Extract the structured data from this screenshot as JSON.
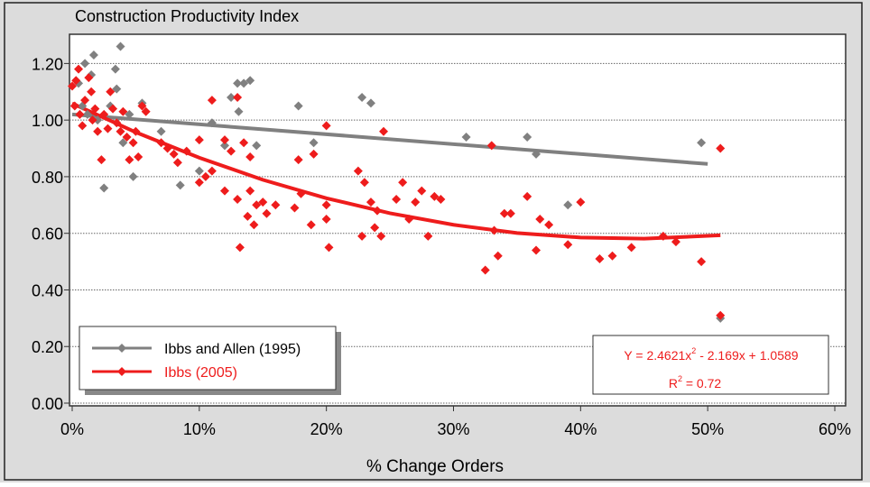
{
  "chart_data": {
    "type": "scatter",
    "title": "Construction Productivity Index",
    "x_label": "% Change Orders",
    "xlim": [
      0,
      60
    ],
    "ylim": [
      0,
      1.3
    ],
    "xticks": [
      {
        "value": 0,
        "label": "0%"
      },
      {
        "value": 10,
        "label": "10%"
      },
      {
        "value": 20,
        "label": "20%"
      },
      {
        "value": 30,
        "label": "30%"
      },
      {
        "value": 40,
        "label": "40%"
      },
      {
        "value": 50,
        "label": "50%"
      },
      {
        "value": 60,
        "label": "60%"
      }
    ],
    "yticks": [
      {
        "value": 0,
        "label": "0.00"
      },
      {
        "value": 0.2,
        "label": "0.20"
      },
      {
        "value": 0.4,
        "label": "0.40"
      },
      {
        "value": 0.6,
        "label": "0.60"
      },
      {
        "value": 0.8,
        "label": "0.80"
      },
      {
        "value": 1,
        "label": "1.00"
      },
      {
        "value": 1.2,
        "label": "1.20"
      }
    ],
    "grid": true,
    "legend": "lower-left",
    "series": [
      {
        "name": "Ibbs and Allen (1995)",
        "color": "#808080",
        "x": [
          0.5,
          1,
          1.5,
          1.7,
          0.8,
          1.2,
          2,
          2.5,
          3,
          3.4,
          3.5,
          3.8,
          4,
          4.5,
          4.8,
          5.5,
          7,
          8.5,
          10,
          11,
          12,
          12.5,
          13,
          13.1,
          13.5,
          14,
          14.5,
          17.8,
          19,
          22.8,
          23.5,
          31,
          35.8,
          36.5,
          39,
          49.5,
          51
        ],
        "values": [
          1.13,
          1.2,
          1.16,
          1.23,
          1.05,
          1.02,
          1.0,
          0.76,
          1.05,
          1.18,
          1.11,
          1.26,
          0.92,
          1.02,
          0.8,
          1.06,
          0.96,
          0.77,
          0.82,
          0.99,
          0.91,
          1.08,
          1.13,
          1.03,
          1.13,
          1.14,
          0.91,
          1.05,
          0.92,
          1.08,
          1.06,
          0.94,
          0.94,
          0.88,
          0.7,
          0.92,
          0.3
        ]
      },
      {
        "name": "Ibbs (2005)",
        "color": "#ee1c1c",
        "x": [
          0,
          0.3,
          0.5,
          0.2,
          0.6,
          0.8,
          1,
          1.3,
          1.5,
          1.6,
          1.8,
          2,
          2.3,
          2.5,
          2.8,
          3,
          3.2,
          3.5,
          3.8,
          4,
          4.3,
          4.5,
          4.8,
          5,
          5.2,
          5.5,
          5.8,
          7,
          7.5,
          8,
          8.3,
          9,
          10,
          10,
          10.5,
          11,
          11,
          12,
          12,
          12.5,
          13,
          13,
          13.2,
          13.5,
          13.8,
          14,
          14,
          14.3,
          14.5,
          15,
          15.3,
          16,
          17.5,
          17.8,
          18,
          18.8,
          19,
          20,
          20,
          20,
          20.2,
          22.5,
          22.8,
          23,
          23.5,
          23.8,
          24,
          24.3,
          24.5,
          25.5,
          26,
          26.5,
          27,
          27.5,
          28,
          28.5,
          29,
          32.5,
          33,
          33.2,
          33.5,
          34,
          34.5,
          35.8,
          36.5,
          36.8,
          37.5,
          39,
          40,
          41.5,
          42.5,
          44,
          46.5,
          47.5,
          49.5,
          51,
          51
        ],
        "values": [
          1.12,
          1.14,
          1.18,
          1.05,
          1.02,
          0.98,
          1.07,
          1.15,
          1.1,
          1.0,
          1.04,
          0.96,
          0.86,
          1.02,
          0.97,
          1.1,
          1.04,
          0.99,
          0.96,
          1.03,
          0.94,
          0.86,
          0.92,
          0.96,
          0.87,
          1.05,
          1.03,
          0.92,
          0.9,
          0.88,
          0.85,
          0.89,
          0.93,
          0.78,
          0.8,
          1.07,
          0.82,
          0.93,
          0.75,
          0.89,
          1.08,
          0.72,
          0.55,
          0.92,
          0.66,
          0.75,
          0.87,
          0.63,
          0.7,
          0.71,
          0.67,
          0.7,
          0.69,
          0.86,
          0.74,
          0.63,
          0.88,
          0.98,
          0.7,
          0.65,
          0.55,
          0.82,
          0.59,
          0.78,
          0.71,
          0.62,
          0.68,
          0.59,
          0.96,
          0.72,
          0.78,
          0.65,
          0.71,
          0.75,
          0.59,
          0.73,
          0.72,
          0.47,
          0.91,
          0.61,
          0.52,
          0.67,
          0.67,
          0.73,
          0.54,
          0.65,
          0.63,
          0.56,
          0.71,
          0.51,
          0.52,
          0.55,
          0.59,
          0.57,
          0.5,
          0.9,
          0.31
        ]
      }
    ],
    "trendlines": [
      {
        "color": "#808080",
        "x": [
          0,
          50
        ],
        "values": [
          1.02,
          0.845
        ]
      },
      {
        "color": "#ee1c1c",
        "x": [
          0,
          5,
          10,
          15,
          20,
          25,
          30,
          35,
          40,
          45,
          51
        ],
        "values": [
          1.059,
          0.957,
          0.867,
          0.789,
          0.724,
          0.671,
          0.63,
          0.601,
          0.585,
          0.581,
          0.593
        ]
      }
    ],
    "equation": [
      "Y = 2.4621x",
      "2",
      " - 2.169x + 1.0589"
    ],
    "r_squared": [
      "R",
      "2",
      " = 0.72"
    ]
  }
}
